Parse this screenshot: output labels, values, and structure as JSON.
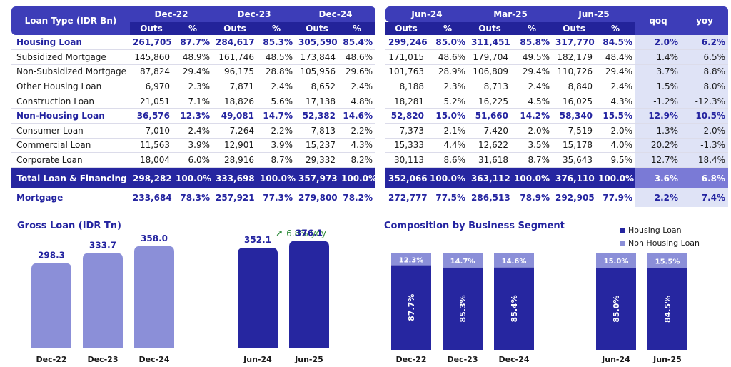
{
  "table_left": {
    "header_label": "Loan Type (IDR Bn)",
    "periods": [
      "Dec-22",
      "Dec-23",
      "Dec-24"
    ],
    "sub": [
      "Outs",
      "%"
    ],
    "rows": [
      {
        "label": "Housing Loan",
        "type": "sec",
        "vals": [
          "261,705",
          "87.7%",
          "284,617",
          "85.3%",
          "305,590",
          "85.4%"
        ]
      },
      {
        "label": "Subsidized Mortgage",
        "type": "norm",
        "vals": [
          "145,860",
          "48.9%",
          "161,746",
          "48.5%",
          "173,844",
          "48.6%"
        ]
      },
      {
        "label": "Non-Subsidized Mortgage",
        "type": "norm",
        "vals": [
          "87,824",
          "29.4%",
          "96,175",
          "28.8%",
          "105,956",
          "29.6%"
        ]
      },
      {
        "label": "Other Housing Loan",
        "type": "norm",
        "vals": [
          "6,970",
          "2.3%",
          "7,871",
          "2.4%",
          "8,652",
          "2.4%"
        ]
      },
      {
        "label": "Construction Loan",
        "type": "norm",
        "vals": [
          "21,051",
          "7.1%",
          "18,826",
          "5.6%",
          "17,138",
          "4.8%"
        ]
      },
      {
        "label": "Non-Housing Loan",
        "type": "sec",
        "vals": [
          "36,576",
          "12.3%",
          "49,081",
          "14.7%",
          "52,382",
          "14.6%"
        ]
      },
      {
        "label": "Consumer Loan",
        "type": "norm",
        "vals": [
          "7,010",
          "2.4%",
          "7,264",
          "2.2%",
          "7,813",
          "2.2%"
        ]
      },
      {
        "label": "Commercial Loan",
        "type": "norm",
        "vals": [
          "11,563",
          "3.9%",
          "12,901",
          "3.9%",
          "15,237",
          "4.3%"
        ]
      },
      {
        "label": "Corporate Loan",
        "type": "norm",
        "vals": [
          "18,004",
          "6.0%",
          "28,916",
          "8.7%",
          "29,332",
          "8.2%"
        ]
      },
      {
        "label": "Total Loan & Financing",
        "type": "tot",
        "vals": [
          "298,282",
          "100.0%",
          "333,698",
          "100.0%",
          "357,973",
          "100.0%"
        ]
      },
      {
        "label": "Mortgage",
        "type": "mort",
        "vals": [
          "233,684",
          "78.3%",
          "257,921",
          "77.3%",
          "279,800",
          "78.2%"
        ]
      }
    ]
  },
  "table_right": {
    "periods": [
      "Jun-24",
      "Mar-25",
      "Jun-25"
    ],
    "sub": [
      "Outs",
      "%"
    ],
    "extra_headers": [
      "qoq",
      "yoy"
    ],
    "rows": [
      {
        "type": "sec",
        "vals": [
          "299,246",
          "85.0%",
          "311,451",
          "85.8%",
          "317,770",
          "84.5%",
          "2.0%",
          "6.2%"
        ]
      },
      {
        "type": "norm",
        "vals": [
          "171,015",
          "48.6%",
          "179,704",
          "49.5%",
          "182,179",
          "48.4%",
          "1.4%",
          "6.5%"
        ]
      },
      {
        "type": "norm",
        "vals": [
          "101,763",
          "28.9%",
          "106,809",
          "29.4%",
          "110,726",
          "29.4%",
          "3.7%",
          "8.8%"
        ]
      },
      {
        "type": "norm",
        "vals": [
          "8,188",
          "2.3%",
          "8,713",
          "2.4%",
          "8,840",
          "2.4%",
          "1.5%",
          "8.0%"
        ]
      },
      {
        "type": "norm",
        "vals": [
          "18,281",
          "5.2%",
          "16,225",
          "4.5%",
          "16,025",
          "4.3%",
          "-1.2%",
          "-12.3%"
        ]
      },
      {
        "type": "sec",
        "vals": [
          "52,820",
          "15.0%",
          "51,660",
          "14.2%",
          "58,340",
          "15.5%",
          "12.9%",
          "10.5%"
        ]
      },
      {
        "type": "norm",
        "vals": [
          "7,373",
          "2.1%",
          "7,420",
          "2.0%",
          "7,519",
          "2.0%",
          "1.3%",
          "2.0%"
        ]
      },
      {
        "type": "norm",
        "vals": [
          "15,333",
          "4.4%",
          "12,622",
          "3.5%",
          "15,178",
          "4.0%",
          "20.2%",
          "-1.3%"
        ]
      },
      {
        "type": "norm",
        "vals": [
          "30,113",
          "8.6%",
          "31,618",
          "8.7%",
          "35,643",
          "9.5%",
          "12.7%",
          "18.4%"
        ]
      },
      {
        "type": "tot",
        "vals": [
          "352,066",
          "100.0%",
          "363,112",
          "100.0%",
          "376,110",
          "100.0%",
          "3.6%",
          "6.8%"
        ]
      },
      {
        "type": "mort",
        "vals": [
          "272,777",
          "77.5%",
          "286,513",
          "78.9%",
          "292,905",
          "77.9%",
          "2.2%",
          "7.4%"
        ]
      }
    ]
  },
  "colors": {
    "navy": "#23239a",
    "header_blue": "#3d3db8",
    "light_bar": "#8b8fd8",
    "dark_bar": "#2626a0",
    "shade": "#dfe3f6",
    "growth_green": "#2e8b3a"
  },
  "chart_data": [
    {
      "type": "bar",
      "title": "Gross Loan (IDR Tn)",
      "categories": [
        "Dec-22",
        "Dec-23",
        "Dec-24",
        "Jun-24",
        "Jun-25"
      ],
      "values": [
        298.3,
        333.7,
        358.0,
        352.1,
        376.1
      ],
      "value_labels": [
        "298.3",
        "333.7",
        "358.0",
        "352.1",
        "376.1"
      ],
      "annotation": "6.8% yoy",
      "xlabel": "",
      "ylabel": ""
    },
    {
      "type": "bar",
      "stacked": true,
      "title": "Composition by Business Segment",
      "categories": [
        "Dec-22",
        "Dec-23",
        "Dec-24",
        "Jun-24",
        "Jun-25"
      ],
      "series": [
        {
          "name": "Housing Loan",
          "values": [
            87.7,
            85.3,
            85.4,
            85.0,
            84.5
          ],
          "labels": [
            "87.7%",
            "85.3%",
            "85.4%",
            "85.0%",
            "84.5%"
          ]
        },
        {
          "name": "Non Housing Loan",
          "values": [
            12.3,
            14.7,
            14.6,
            15.0,
            15.5
          ],
          "labels": [
            "12.3%",
            "14.7%",
            "14.6%",
            "15.0%",
            "15.5%"
          ]
        }
      ],
      "legend": "top-right",
      "ylim": [
        0,
        100
      ]
    }
  ]
}
